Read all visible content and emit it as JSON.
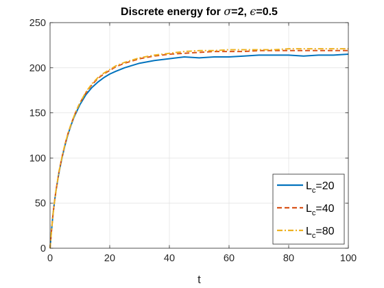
{
  "chart_data": {
    "type": "line",
    "title": {
      "prefix": "Discrete energy for ",
      "sym1": "σ",
      "mid": "=2, ",
      "sym2": "ϵ",
      "suffix": "=0.5"
    },
    "xlabel": "t",
    "ylabel": "",
    "xlim": [
      0,
      100
    ],
    "ylim": [
      0,
      250
    ],
    "xticks": [
      0,
      20,
      40,
      60,
      80,
      100
    ],
    "yticks": [
      0,
      50,
      100,
      150,
      200,
      250
    ],
    "grid": true,
    "legend_position": "bottom-right",
    "x": [
      0,
      0.5,
      1,
      1.5,
      2,
      3,
      4,
      5,
      6,
      7,
      8,
      9,
      10,
      12,
      14,
      16,
      18,
      20,
      22,
      25,
      28,
      30,
      35,
      40,
      45,
      50,
      55,
      60,
      65,
      70,
      75,
      80,
      85,
      90,
      95,
      100
    ],
    "series": [
      {
        "name_main": "L",
        "name_sub": "c",
        "name_value": "=20",
        "color": "#0072BD",
        "dash": "solid",
        "values": [
          0,
          20,
          38,
          52,
          64,
          84,
          100,
          114,
          126,
          136,
          145,
          152,
          159,
          170,
          178,
          184,
          189,
          193,
          196,
          200,
          203,
          205,
          208,
          210,
          212,
          211,
          212,
          212,
          213,
          214,
          214,
          214,
          213,
          214,
          214,
          215
        ]
      },
      {
        "name_main": "L",
        "name_sub": "c",
        "name_value": "=40",
        "color": "#D95319",
        "dash": "dashed",
        "values": [
          0,
          20,
          38,
          52,
          64,
          85,
          101,
          115,
          127,
          137,
          146,
          154,
          161,
          172,
          181,
          188,
          193,
          197,
          201,
          205,
          208,
          210,
          213,
          215,
          216,
          217,
          218,
          218,
          218,
          219,
          219,
          219,
          219,
          219,
          219,
          219
        ]
      },
      {
        "name_main": "L",
        "name_sub": "c",
        "name_value": "=80",
        "color": "#EDB120",
        "dash": "dashdot",
        "values": [
          0,
          20,
          38,
          52,
          64,
          85,
          101,
          115,
          127,
          137,
          146,
          154,
          161,
          173,
          182,
          189,
          194,
          198,
          202,
          206,
          209,
          211,
          214,
          216,
          218,
          219,
          219,
          220,
          220,
          220,
          220,
          221,
          221,
          221,
          221,
          221
        ]
      }
    ]
  }
}
